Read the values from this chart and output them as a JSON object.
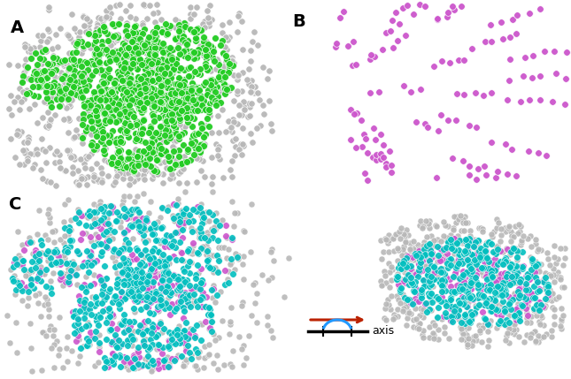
{
  "bg_color": "#ffffff",
  "label_A": "A",
  "label_B": "B",
  "label_C": "C",
  "axis_label": "axis",
  "green_color": "#22cc22",
  "gray_color": "#b8b8b8",
  "magenta_color": "#cc55cc",
  "cyan_color": "#00bfbf",
  "arrow_color": "#bb2200",
  "arc_color": "#2299ff",
  "figsize": [
    6.45,
    4.29
  ],
  "dpi": 100
}
